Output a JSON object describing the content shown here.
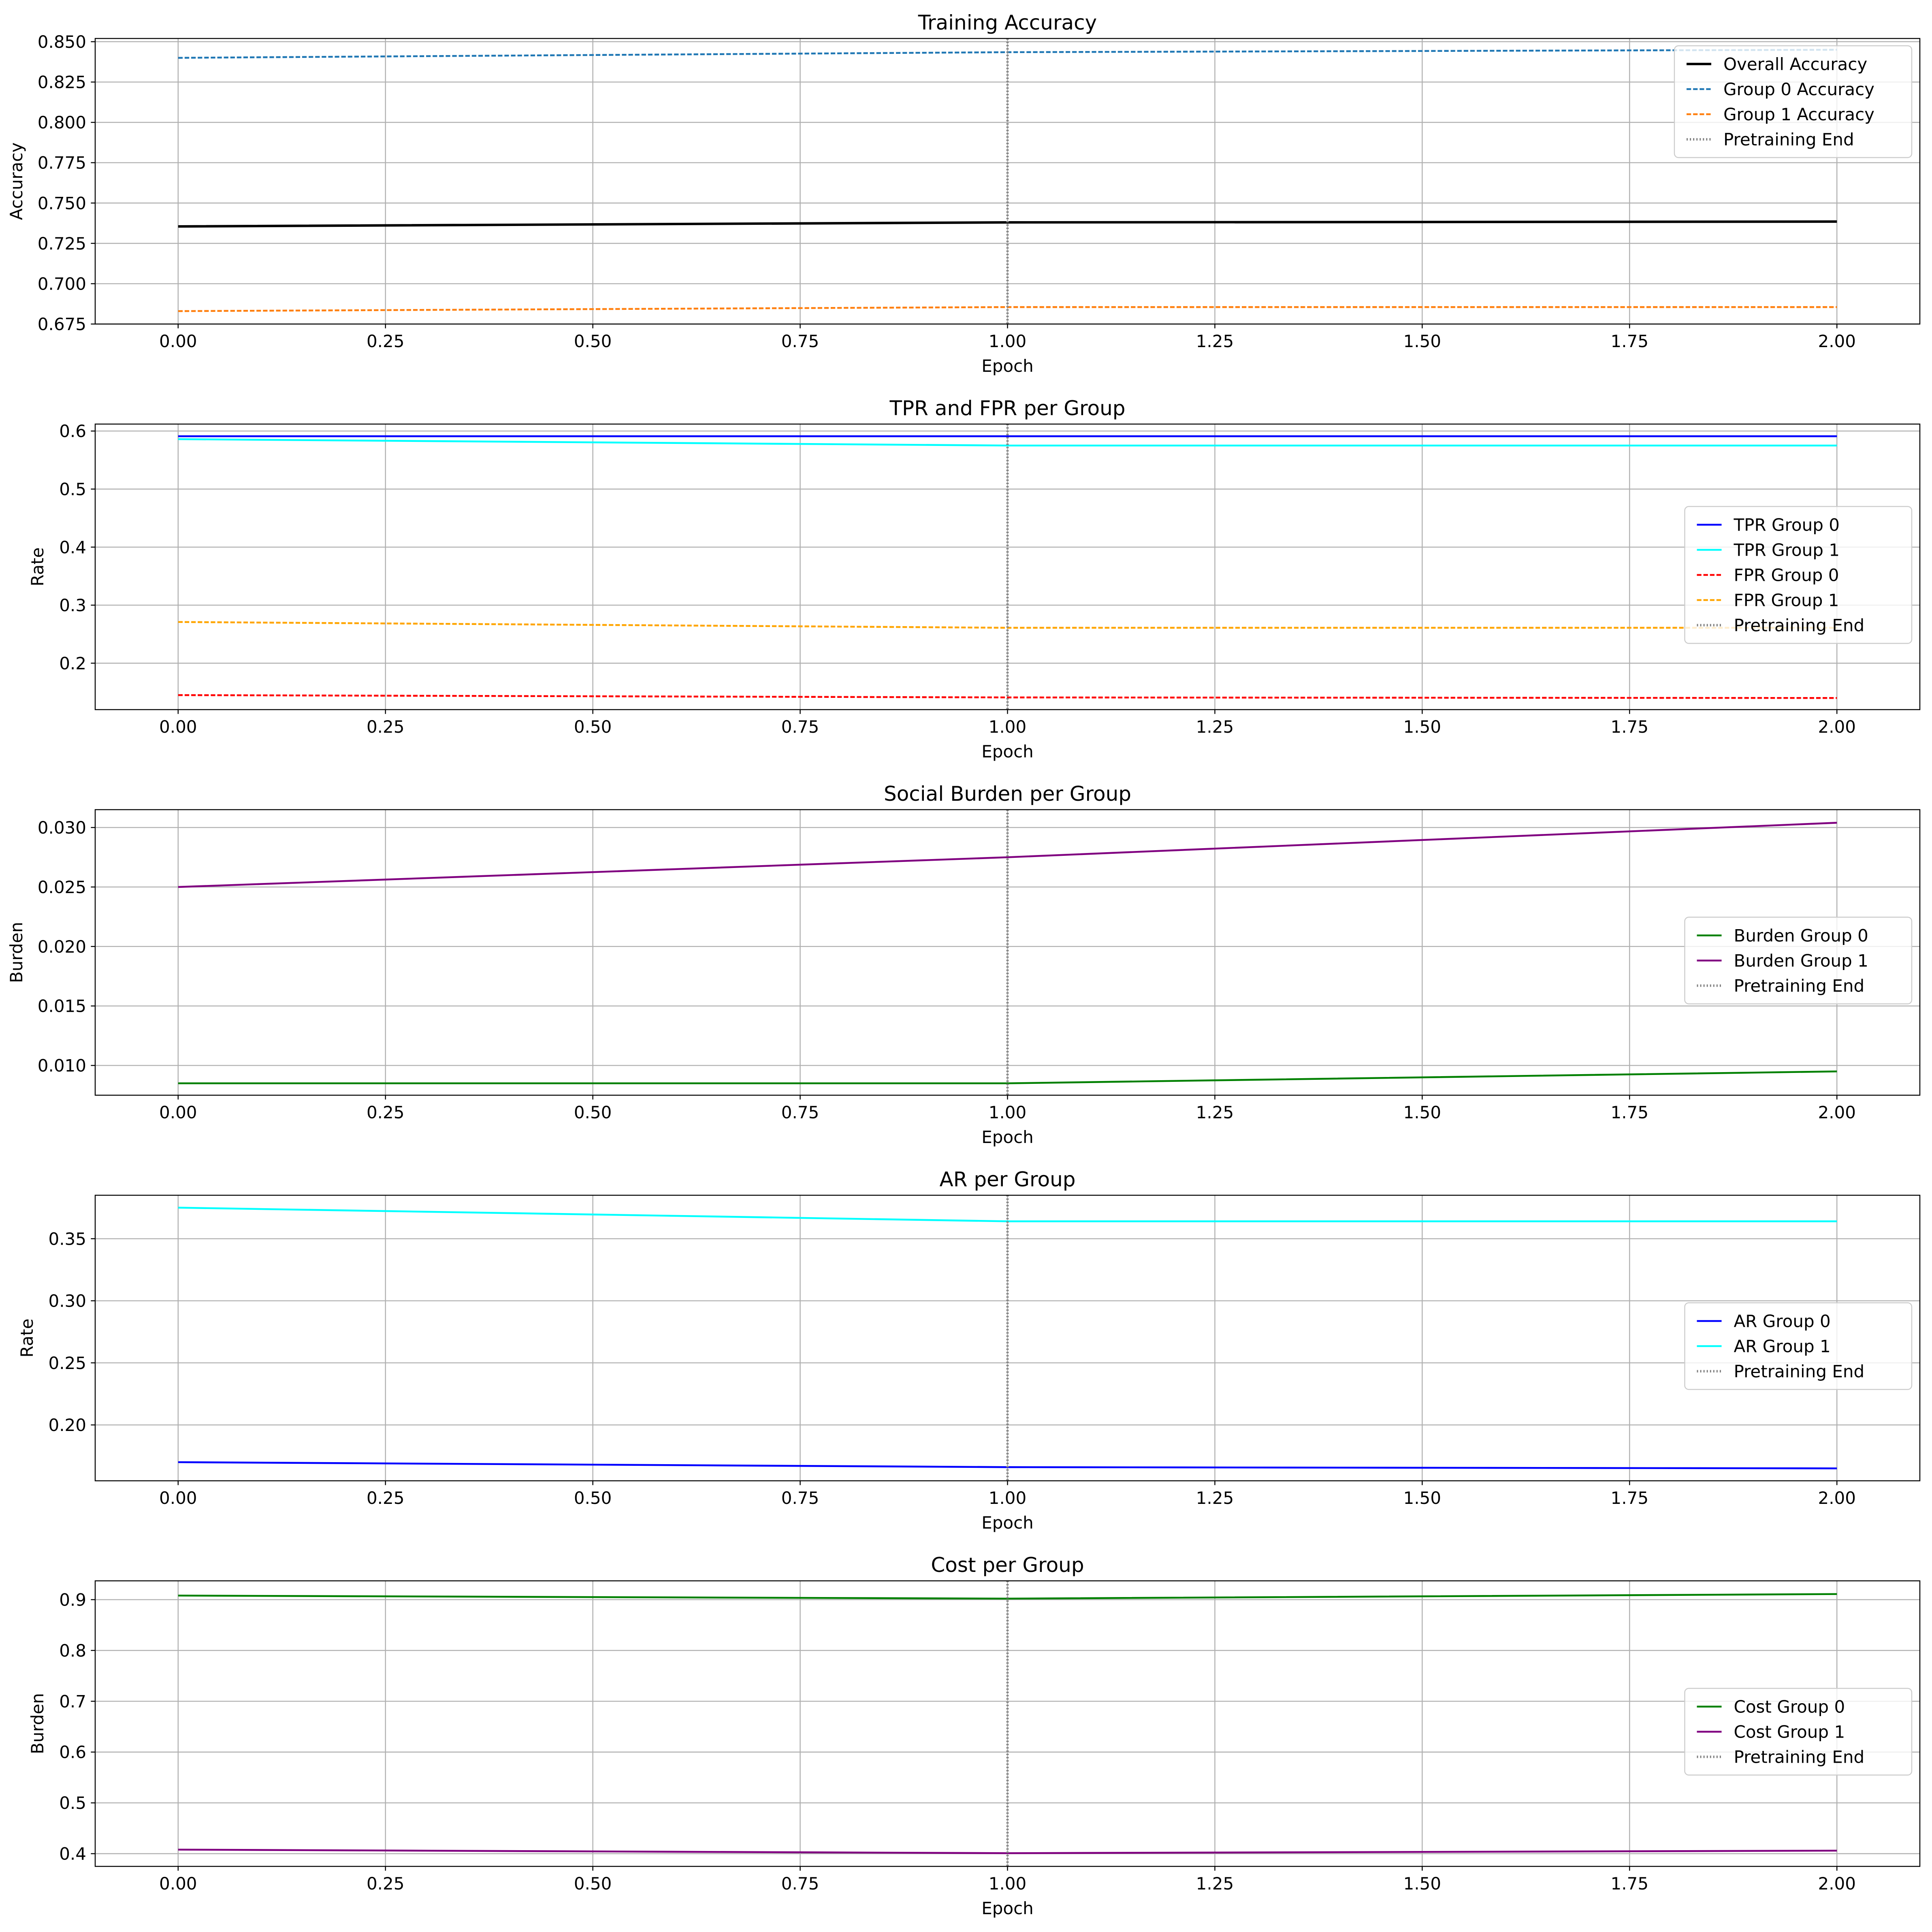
{
  "chart_data": [
    {
      "type": "line",
      "title": "Training Accuracy",
      "xlabel": "Epoch",
      "ylabel": "Accuracy",
      "xlim": [
        -0.1,
        2.1
      ],
      "ylim": [
        0.675,
        0.852
      ],
      "xticks": [
        0.0,
        0.25,
        0.5,
        0.75,
        1.0,
        1.25,
        1.5,
        1.75,
        2.0
      ],
      "xtick_labels": [
        "0.00",
        "0.25",
        "0.50",
        "0.75",
        "1.00",
        "1.25",
        "1.50",
        "1.75",
        "2.00"
      ],
      "yticks": [
        0.675,
        0.7,
        0.725,
        0.75,
        0.775,
        0.8,
        0.825,
        0.85
      ],
      "ytick_labels": [
        "0.675",
        "0.700",
        "0.725",
        "0.750",
        "0.775",
        "0.800",
        "0.825",
        "0.850"
      ],
      "grid": true,
      "legend_position": "top-right",
      "vline": {
        "x": 1.0,
        "label": "Pretraining End",
        "color": "#808080",
        "style": "dotted"
      },
      "x": [
        0,
        1,
        2
      ],
      "series": [
        {
          "name": "Overall Accuracy",
          "color": "#000000",
          "style": "solid",
          "width": 2,
          "values": [
            0.7355,
            0.738,
            0.7385
          ]
        },
        {
          "name": "Group 0 Accuracy",
          "color": "#1f77b4",
          "style": "dashed",
          "width": 1.5,
          "values": [
            0.84,
            0.8435,
            0.845
          ]
        },
        {
          "name": "Group 1 Accuracy",
          "color": "#ff7f0e",
          "style": "dashed",
          "width": 1.5,
          "values": [
            0.683,
            0.6855,
            0.6855
          ]
        }
      ]
    },
    {
      "type": "line",
      "title": "TPR and FPR per Group",
      "xlabel": "Epoch",
      "ylabel": "Rate",
      "xlim": [
        -0.1,
        2.1
      ],
      "ylim": [
        0.12,
        0.612
      ],
      "xticks": [
        0.0,
        0.25,
        0.5,
        0.75,
        1.0,
        1.25,
        1.5,
        1.75,
        2.0
      ],
      "xtick_labels": [
        "0.00",
        "0.25",
        "0.50",
        "0.75",
        "1.00",
        "1.25",
        "1.50",
        "1.75",
        "2.00"
      ],
      "yticks": [
        0.2,
        0.3,
        0.4,
        0.5,
        0.6
      ],
      "ytick_labels": [
        "0.2",
        "0.3",
        "0.4",
        "0.5",
        "0.6"
      ],
      "grid": true,
      "legend_position": "center-right",
      "vline": {
        "x": 1.0,
        "label": "Pretraining End",
        "color": "#808080",
        "style": "dotted"
      },
      "x": [
        0,
        1,
        2
      ],
      "series": [
        {
          "name": "TPR Group 0",
          "color": "#0000ff",
          "style": "solid",
          "width": 1.5,
          "values": [
            0.591,
            0.591,
            0.591
          ]
        },
        {
          "name": "TPR Group 1",
          "color": "#00ffff",
          "style": "solid",
          "width": 1.5,
          "values": [
            0.586,
            0.575,
            0.575
          ]
        },
        {
          "name": "FPR Group 0",
          "color": "#ff0000",
          "style": "dashed",
          "width": 1.5,
          "values": [
            0.145,
            0.141,
            0.14
          ]
        },
        {
          "name": "FPR Group 1",
          "color": "#ffa500",
          "style": "dashed",
          "width": 1.5,
          "values": [
            0.271,
            0.261,
            0.261
          ]
        }
      ]
    },
    {
      "type": "line",
      "title": "Social Burden per Group",
      "xlabel": "Epoch",
      "ylabel": "Burden",
      "xlim": [
        -0.1,
        2.1
      ],
      "ylim": [
        0.0075,
        0.0315
      ],
      "xticks": [
        0.0,
        0.25,
        0.5,
        0.75,
        1.0,
        1.25,
        1.5,
        1.75,
        2.0
      ],
      "xtick_labels": [
        "0.00",
        "0.25",
        "0.50",
        "0.75",
        "1.00",
        "1.25",
        "1.50",
        "1.75",
        "2.00"
      ],
      "yticks": [
        0.01,
        0.015,
        0.02,
        0.025,
        0.03
      ],
      "ytick_labels": [
        "0.010",
        "0.015",
        "0.020",
        "0.025",
        "0.030"
      ],
      "grid": true,
      "legend_position": "center-right",
      "vline": {
        "x": 1.0,
        "label": "Pretraining End",
        "color": "#808080",
        "style": "dotted"
      },
      "x": [
        0,
        1,
        2
      ],
      "series": [
        {
          "name": "Burden Group 0",
          "color": "#008000",
          "style": "solid",
          "width": 1.5,
          "values": [
            0.0085,
            0.0085,
            0.0095
          ]
        },
        {
          "name": "Burden Group 1",
          "color": "#800080",
          "style": "solid",
          "width": 1.5,
          "values": [
            0.025,
            0.0275,
            0.0304
          ]
        }
      ]
    },
    {
      "type": "line",
      "title": "AR per Group",
      "xlabel": "Epoch",
      "ylabel": "Rate",
      "xlim": [
        -0.1,
        2.1
      ],
      "ylim": [
        0.155,
        0.385
      ],
      "xticks": [
        0.0,
        0.25,
        0.5,
        0.75,
        1.0,
        1.25,
        1.5,
        1.75,
        2.0
      ],
      "xtick_labels": [
        "0.00",
        "0.25",
        "0.50",
        "0.75",
        "1.00",
        "1.25",
        "1.50",
        "1.75",
        "2.00"
      ],
      "yticks": [
        0.2,
        0.25,
        0.3,
        0.35
      ],
      "ytick_labels": [
        "0.20",
        "0.25",
        "0.30",
        "0.35"
      ],
      "grid": true,
      "legend_position": "center-right",
      "vline": {
        "x": 1.0,
        "label": "Pretraining End",
        "color": "#808080",
        "style": "dotted"
      },
      "x": [
        0,
        1,
        2
      ],
      "series": [
        {
          "name": "AR Group 0",
          "color": "#0000ff",
          "style": "solid",
          "width": 1.5,
          "values": [
            0.17,
            0.166,
            0.165
          ]
        },
        {
          "name": "AR Group 1",
          "color": "#00ffff",
          "style": "solid",
          "width": 1.5,
          "values": [
            0.375,
            0.364,
            0.364
          ]
        }
      ]
    },
    {
      "type": "line",
      "title": "Cost per Group",
      "xlabel": "Epoch",
      "ylabel": "Burden",
      "xlim": [
        -0.1,
        2.1
      ],
      "ylim": [
        0.375,
        0.937
      ],
      "xticks": [
        0.0,
        0.25,
        0.5,
        0.75,
        1.0,
        1.25,
        1.5,
        1.75,
        2.0
      ],
      "xtick_labels": [
        "0.00",
        "0.25",
        "0.50",
        "0.75",
        "1.00",
        "1.25",
        "1.50",
        "1.75",
        "2.00"
      ],
      "yticks": [
        0.4,
        0.5,
        0.6,
        0.7,
        0.8,
        0.9
      ],
      "ytick_labels": [
        "0.4",
        "0.5",
        "0.6",
        "0.7",
        "0.8",
        "0.9"
      ],
      "grid": true,
      "legend_position": "center-right",
      "vline": {
        "x": 1.0,
        "label": "Pretraining End",
        "color": "#808080",
        "style": "dotted"
      },
      "x": [
        0,
        1,
        2
      ],
      "series": [
        {
          "name": "Cost Group 0",
          "color": "#008000",
          "style": "solid",
          "width": 1.5,
          "values": [
            0.908,
            0.902,
            0.911
          ]
        },
        {
          "name": "Cost Group 1",
          "color": "#800080",
          "style": "solid",
          "width": 1.5,
          "values": [
            0.408,
            0.401,
            0.406
          ]
        }
      ]
    }
  ]
}
